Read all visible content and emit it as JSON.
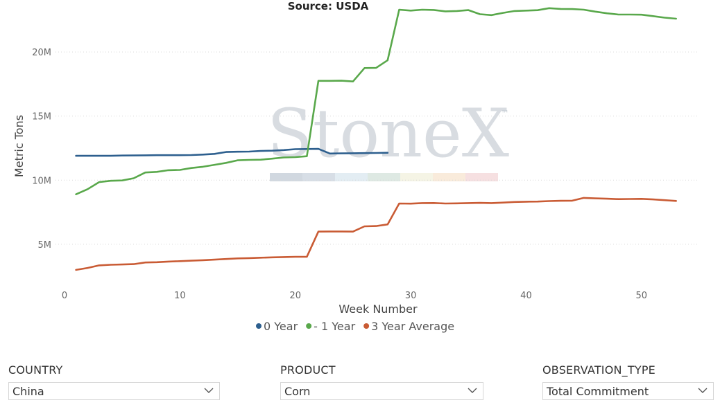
{
  "chart_data": {
    "type": "line",
    "title": "Source: USDA",
    "xlabel": "Week Number",
    "ylabel": "Metric Tons",
    "xlim": [
      0,
      55
    ],
    "ylim": [
      1700000,
      23300000
    ],
    "xticks": [
      0,
      10,
      20,
      30,
      40,
      50
    ],
    "yticks": [
      5000000,
      10000000,
      15000000,
      20000000
    ],
    "ytick_labels": [
      "5M",
      "10M",
      "15M",
      "20M"
    ],
    "grid": "horizontal dotted",
    "legend_position": "bottom",
    "series": [
      {
        "name": "0 Year",
        "color": "#2d5f8e",
        "x": [
          1,
          2,
          3,
          4,
          5,
          6,
          7,
          8,
          9,
          10,
          11,
          12,
          13,
          14,
          15,
          16,
          17,
          18,
          19,
          20,
          21,
          22,
          23,
          24,
          25,
          26,
          27,
          28
        ],
        "y": [
          11900000,
          11900000,
          11900000,
          11900000,
          11920000,
          11930000,
          11940000,
          11950000,
          11950000,
          11950000,
          11960000,
          12000000,
          12050000,
          12200000,
          12220000,
          12230000,
          12280000,
          12300000,
          12350000,
          12420000,
          12430000,
          12440000,
          12080000,
          12090000,
          12100000,
          12110000,
          12120000,
          12140000
        ]
      },
      {
        "name": "- 1 Year",
        "color": "#59a84b",
        "x": [
          1,
          2,
          3,
          4,
          5,
          6,
          7,
          8,
          9,
          10,
          11,
          12,
          13,
          14,
          15,
          16,
          17,
          18,
          19,
          20,
          21,
          22,
          23,
          24,
          25,
          26,
          27,
          28,
          29,
          30,
          31,
          32,
          33,
          34,
          35,
          36,
          37,
          38,
          39,
          40,
          41,
          42,
          43,
          44,
          45,
          46,
          47,
          48,
          49,
          50,
          51,
          52,
          53
        ],
        "y": [
          8900000,
          9300000,
          9850000,
          9950000,
          9980000,
          10150000,
          10600000,
          10650000,
          10780000,
          10800000,
          10950000,
          11050000,
          11200000,
          11350000,
          11550000,
          11580000,
          11600000,
          11680000,
          11770000,
          11800000,
          11870000,
          17750000,
          17750000,
          17760000,
          17700000,
          18750000,
          18760000,
          19350000,
          23300000,
          23230000,
          23300000,
          23280000,
          23170000,
          23200000,
          23270000,
          22950000,
          22880000,
          23050000,
          23200000,
          23230000,
          23260000,
          23420000,
          23360000,
          23350000,
          23300000,
          23150000,
          23020000,
          22920000,
          22920000,
          22910000,
          22800000,
          22680000,
          22600000
        ]
      },
      {
        "name": "3 Year Average",
        "color": "#c95b34",
        "x": [
          1,
          2,
          3,
          4,
          5,
          6,
          7,
          8,
          9,
          10,
          11,
          12,
          13,
          14,
          15,
          16,
          17,
          18,
          19,
          20,
          21,
          22,
          23,
          24,
          25,
          26,
          27,
          28,
          29,
          30,
          31,
          32,
          33,
          34,
          35,
          36,
          37,
          38,
          39,
          40,
          41,
          42,
          43,
          44,
          45,
          46,
          47,
          48,
          49,
          50,
          51,
          52,
          53
        ],
        "y": [
          3000000,
          3150000,
          3350000,
          3400000,
          3420000,
          3450000,
          3580000,
          3600000,
          3650000,
          3680000,
          3720000,
          3760000,
          3800000,
          3850000,
          3900000,
          3920000,
          3950000,
          3980000,
          4000000,
          4020000,
          4030000,
          5990000,
          6000000,
          6000000,
          5990000,
          6400000,
          6420000,
          6550000,
          8180000,
          8170000,
          8210000,
          8220000,
          8180000,
          8190000,
          8210000,
          8230000,
          8210000,
          8250000,
          8300000,
          8320000,
          8330000,
          8370000,
          8390000,
          8400000,
          8620000,
          8580000,
          8550000,
          8520000,
          8530000,
          8540000,
          8500000,
          8440000,
          8380000
        ]
      }
    ]
  },
  "watermark": {
    "text": "StoneX",
    "tm": "™",
    "stripe_colors": [
      "#c5ced8",
      "#cdd6e0",
      "#dce8f0",
      "#d6e4dc",
      "#f2f1de",
      "#f7e6d2",
      "#f4d8da"
    ]
  },
  "filters": [
    {
      "label": "COUNTRY",
      "value": "China"
    },
    {
      "label": "PRODUCT",
      "value": "Corn"
    },
    {
      "label": "OBSERVATION_TYPE",
      "value": "Total Commitment"
    }
  ]
}
